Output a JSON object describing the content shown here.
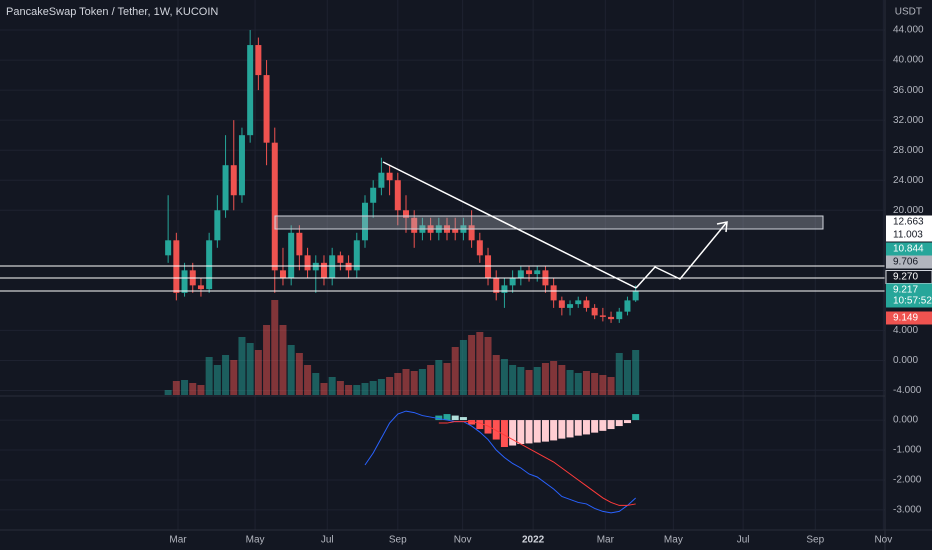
{
  "chart_data": {
    "type": "candlestick",
    "title": "PancakeSwap Token / Tether, 1W, KUCOIN",
    "currency": "USDT",
    "up_color": "#26a69a",
    "down_color": "#ef5350",
    "x": [
      0,
      1,
      2,
      3,
      4,
      5,
      6,
      7,
      8,
      9,
      10,
      11,
      12,
      13,
      14,
      15,
      16,
      17,
      18,
      19,
      20,
      21,
      22,
      23,
      24,
      25,
      26,
      27,
      28,
      29,
      30,
      31,
      32,
      33,
      34,
      35,
      36,
      37,
      38,
      39,
      40,
      41,
      42,
      43,
      44,
      45,
      46,
      47,
      48,
      49,
      50,
      51,
      52,
      53,
      54,
      55,
      56,
      57
    ],
    "open": [
      14,
      16,
      9,
      12,
      10,
      9.5,
      16,
      20,
      26,
      22,
      30,
      42,
      38,
      29,
      12,
      11,
      17,
      14,
      12,
      13,
      11,
      14,
      13,
      12,
      16,
      21,
      23,
      25,
      24,
      20,
      19,
      17,
      18,
      17,
      18,
      17.5,
      17,
      18,
      16,
      14,
      11,
      9,
      10,
      11,
      12,
      11.5,
      12,
      10,
      8,
      7,
      7.5,
      8,
      7,
      6,
      5.8,
      5.5,
      6.5,
      8
    ],
    "high": [
      22,
      17,
      13,
      13,
      11,
      17,
      22,
      30,
      32,
      31,
      44,
      43,
      40,
      31,
      15,
      18,
      18,
      15,
      14,
      14,
      15,
      14.5,
      14,
      17,
      22,
      24,
      27,
      26,
      25,
      22,
      20,
      19,
      19,
      19,
      19,
      19,
      19,
      20,
      17,
      15,
      12,
      11,
      12,
      12.5,
      12.5,
      12.5,
      12.5,
      11,
      8.5,
      8,
      8.5,
      8.5,
      7.5,
      7,
      6.5,
      7,
      8.5,
      10
    ],
    "low": [
      13,
      8,
      8.5,
      9,
      8.5,
      9,
      15,
      19,
      20,
      21,
      29,
      36,
      26,
      9,
      10,
      10,
      12,
      11,
      9,
      10,
      10,
      12,
      11,
      11,
      15,
      19,
      22,
      22,
      18,
      17,
      15,
      16,
      16,
      16,
      16,
      16,
      16,
      15,
      13,
      10,
      8,
      7,
      9,
      10,
      10.5,
      10.5,
      9,
      7,
      6,
      6,
      7,
      6.5,
      5.5,
      5.2,
      5,
      5,
      6,
      7.8
    ],
    "close": [
      16,
      9,
      12,
      10,
      9.5,
      16,
      20,
      26,
      22,
      30,
      42,
      38,
      29,
      12,
      11,
      17,
      14,
      12,
      13,
      11,
      14,
      13,
      12,
      16,
      21,
      23,
      25,
      24,
      20,
      19,
      17,
      18,
      17,
      18,
      17,
      17,
      18,
      16,
      14,
      11,
      9,
      10,
      11,
      12,
      11.5,
      12,
      10,
      8,
      7,
      7.5,
      8,
      7,
      6,
      5.8,
      5.5,
      6.5,
      8,
      9.2
    ],
    "xlim": [
      -20.5,
      87.4
    ],
    "xticks": [
      {
        "value": 1.2,
        "label": "Mar"
      },
      {
        "value": 10.6,
        "label": "May"
      },
      {
        "value": 19.4,
        "label": "Jul"
      },
      {
        "value": 28,
        "label": "Sep"
      },
      {
        "value": 35.9,
        "label": "Nov"
      },
      {
        "value": 44.5,
        "label": "2022"
      },
      {
        "value": 53.3,
        "label": "Mar"
      },
      {
        "value": 61.6,
        "label": "May"
      },
      {
        "value": 70.1,
        "label": "Jul"
      },
      {
        "value": 78.9,
        "label": "Sep"
      },
      {
        "value": 87.2,
        "label": "Nov"
      }
    ],
    "ylim": [
      -4.6,
      48
    ],
    "yticks": [
      {
        "value": 44,
        "label": "44.000"
      },
      {
        "value": 40,
        "label": "40.000"
      },
      {
        "value": 36,
        "label": "36.000"
      },
      {
        "value": 32,
        "label": "32.000"
      },
      {
        "value": 28,
        "label": "28.000"
      },
      {
        "value": 24,
        "label": "24.000"
      },
      {
        "value": 20,
        "label": "20.000"
      },
      {
        "value": 4,
        "label": "4.000"
      },
      {
        "value": 0,
        "label": "0.000"
      },
      {
        "value": -4,
        "label": "-4.000"
      }
    ],
    "volume": {
      "ylim": [
        0,
        100
      ],
      "values": [
        5,
        14,
        15,
        12,
        10,
        38,
        30,
        40,
        35,
        58,
        52,
        45,
        70,
        95,
        70,
        50,
        42,
        30,
        22,
        12,
        18,
        14,
        10,
        10,
        12,
        14,
        16,
        18,
        22,
        26,
        24,
        26,
        30,
        35,
        32,
        48,
        55,
        60,
        63,
        58,
        40,
        36,
        30,
        28,
        25,
        28,
        32,
        34,
        30,
        25,
        22,
        24,
        22,
        20,
        18,
        42,
        35,
        45
      ]
    },
    "price_labels": [
      {
        "label": "12.663",
        "color": "#ffffff",
        "text_color": "#131722"
      },
      {
        "label": "11.003",
        "color": "#ffffff",
        "text_color": "#131722"
      },
      {
        "label": "10.844",
        "color": "#26a69a",
        "text_color": "#ffffff"
      },
      {
        "label": "9.706",
        "color": "#b2b5be",
        "text_color": "#131722"
      },
      {
        "label": "9.270",
        "color": "#131722",
        "text_color": "#ffffff"
      },
      {
        "label": "9.217",
        "color": "#26a69a",
        "text_color": "#ffffff"
      },
      {
        "label": "9.149",
        "color": "#ef5350",
        "text_color": "#ffffff"
      }
    ],
    "countdown": "10:57:52",
    "macd": {
      "ylim": [
        -3.67,
        0.77
      ],
      "yticks": [
        {
          "value": 0,
          "label": "0.000"
        },
        {
          "value": -1,
          "label": "-1.000"
        },
        {
          "value": -2,
          "label": "-2.000"
        },
        {
          "value": -3,
          "label": "-3.000"
        }
      ],
      "macd_color": "#2962ff",
      "signal_color": "#ff3b3b",
      "hist_colors": {
        "up_rising": "#26a69a",
        "up_falling": "#b2dfdb",
        "down_falling": "#ff5252",
        "down_rising": "#ffcdd2"
      },
      "macd": [
        null,
        null,
        null,
        null,
        null,
        null,
        null,
        null,
        null,
        null,
        null,
        null,
        null,
        null,
        null,
        null,
        null,
        null,
        null,
        null,
        null,
        null,
        null,
        null,
        -1.5,
        -1.1,
        -0.6,
        -0.1,
        0.2,
        0.3,
        0.25,
        0.15,
        0.1,
        0.05,
        0,
        -0.05,
        -0.05,
        -0.2,
        -0.4,
        -0.65,
        -1.0,
        -1.25,
        -1.45,
        -1.6,
        -1.8,
        -1.9,
        -2.1,
        -2.3,
        -2.55,
        -2.65,
        -2.75,
        -2.8,
        -2.95,
        -3.05,
        -3.1,
        -3.05,
        -2.85,
        -2.6
      ],
      "signal": [
        null,
        null,
        null,
        null,
        null,
        null,
        null,
        null,
        null,
        null,
        null,
        null,
        null,
        null,
        null,
        null,
        null,
        null,
        null,
        null,
        null,
        null,
        null,
        null,
        null,
        null,
        null,
        null,
        null,
        null,
        null,
        null,
        null,
        -0.1,
        -0.1,
        -0.05,
        -0.05,
        -0.05,
        -0.1,
        -0.2,
        -0.35,
        -0.5,
        -0.65,
        -0.8,
        -0.95,
        -1.1,
        -1.25,
        -1.4,
        -1.6,
        -1.8,
        -2.0,
        -2.2,
        -2.4,
        -2.6,
        -2.75,
        -2.85,
        -2.85,
        -2.8
      ],
      "histogram": [
        null,
        null,
        null,
        null,
        null,
        null,
        null,
        null,
        null,
        null,
        null,
        null,
        null,
        null,
        null,
        null,
        null,
        null,
        null,
        null,
        null,
        null,
        null,
        null,
        null,
        null,
        null,
        null,
        null,
        null,
        null,
        null,
        null,
        0.15,
        0.2,
        0.15,
        0.1,
        -0.15,
        -0.3,
        -0.45,
        -0.65,
        -0.9,
        -0.85,
        -0.8,
        -0.78,
        -0.75,
        -0.72,
        -0.68,
        -0.62,
        -0.58,
        -0.52,
        -0.48,
        -0.42,
        -0.36,
        -0.3,
        -0.2,
        -0.1,
        0.2
      ]
    }
  }
}
